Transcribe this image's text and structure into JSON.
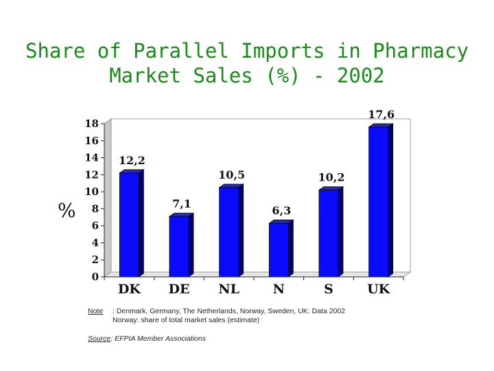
{
  "title_line1": "Share of Parallel Imports in Pharmacy",
  "title_line2": "Market Sales (%) - 2002",
  "chart_data": {
    "type": "bar",
    "categories": [
      "DK",
      "DE",
      "NL",
      "N",
      "S",
      "UK"
    ],
    "values": [
      12.2,
      7.1,
      10.5,
      6.3,
      10.2,
      17.6
    ],
    "data_labels": [
      "12,2",
      "7,1",
      "10,5",
      "6,3",
      "10,2",
      "17,6"
    ],
    "ylabel": "%",
    "xlabel": "",
    "ylim": [
      0,
      18
    ],
    "yticks": [
      0,
      2,
      4,
      6,
      8,
      10,
      12,
      14,
      16,
      18
    ],
    "bar_color": "#0a0aff",
    "bar_shadow_color": "#000070",
    "grid": false,
    "style": "3d"
  },
  "notes": {
    "note_label": "Note",
    "note_line1": ": Denmark, Germany, The Netherlands, Norway, Sweden, UK: Data 2002",
    "note_line2": "Norway: share of total market sales (estimate)",
    "source_label": "Source",
    "source_text": ": EFPIA Member Associations"
  }
}
